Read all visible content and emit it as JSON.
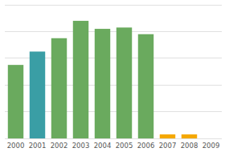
{
  "chart_data": {
    "type": "bar",
    "categories": [
      "2000",
      "2001",
      "2002",
      "2003",
      "2004",
      "2005",
      "2006",
      "2007",
      "2008",
      "2009"
    ],
    "values": [
      55,
      65,
      75,
      88,
      82,
      83,
      78,
      3,
      3,
      0
    ],
    "colors": [
      "#6aaa5e",
      "#3a9ea5",
      "#6aaa5e",
      "#6aaa5e",
      "#6aaa5e",
      "#6aaa5e",
      "#6aaa5e",
      "#f5a800",
      "#f5a800",
      "#f5a800"
    ],
    "ylim": [
      0,
      100
    ],
    "yticks": [
      0,
      20,
      40,
      60,
      80,
      100
    ],
    "grid": true,
    "tick_labels": "x"
  }
}
